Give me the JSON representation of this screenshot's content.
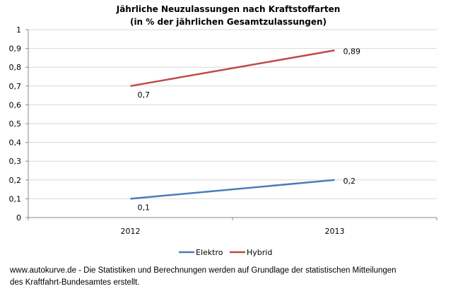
{
  "chart_data": {
    "type": "line",
    "title": "Jährliche Neuzulassungen nach Kraftstoffarten",
    "subtitle": "(in % der jährlichen Gesamtzulassungen)",
    "xlabel": "",
    "ylabel": "",
    "categories": [
      "2012",
      "2013"
    ],
    "ylim": [
      0,
      1
    ],
    "yticks": [
      "0",
      "0,1",
      "0,2",
      "0,3",
      "0,4",
      "0,5",
      "0,6",
      "0,7",
      "0,8",
      "0,9",
      "1"
    ],
    "grid": true,
    "legend": "bottom",
    "series": [
      {
        "name": "Elektro",
        "values": [
          0.1,
          0.2
        ],
        "labels": [
          "0,1",
          "0,2"
        ],
        "color": "#4a7ebb"
      },
      {
        "name": "Hybrid",
        "values": [
          0.7,
          0.89
        ],
        "labels": [
          "0,7",
          "0,89"
        ],
        "color": "#be4b48"
      }
    ]
  },
  "footer": {
    "line1": "www.autokurve.de  -  Die Statistiken und Berechnungen werden auf Grundlage der statistischen Mitteilungen",
    "line2": "des Kraftfahrt-Bundesamtes erstellt."
  }
}
